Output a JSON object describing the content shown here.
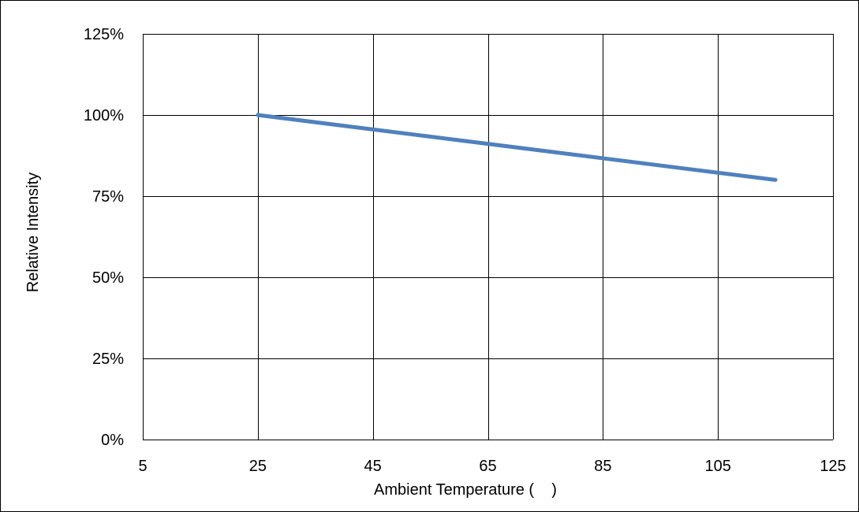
{
  "chart_data": {
    "type": "line",
    "title": "",
    "xlabel": "Ambient Temperature (    )",
    "ylabel": "Relative Intensity",
    "xlim": [
      5,
      125
    ],
    "ylim": [
      0,
      1.25
    ],
    "x_ticks": [
      5,
      25,
      45,
      65,
      85,
      105,
      125
    ],
    "x_tick_labels": [
      "5",
      "25",
      "45",
      "65",
      "85",
      "105",
      "125"
    ],
    "y_ticks": [
      0,
      0.25,
      0.5,
      0.75,
      1.0,
      1.25
    ],
    "y_tick_labels": [
      "0%",
      "25%",
      "50%",
      "75%",
      "100%",
      "125%"
    ],
    "grid": true,
    "legend": "none",
    "series": [
      {
        "color": "#4f81bd",
        "x": [
          25,
          115
        ],
        "y": [
          1.0,
          0.8
        ]
      }
    ]
  },
  "colors": {
    "grid": "#000000",
    "border": "#000000",
    "series": "#4f81bd"
  }
}
